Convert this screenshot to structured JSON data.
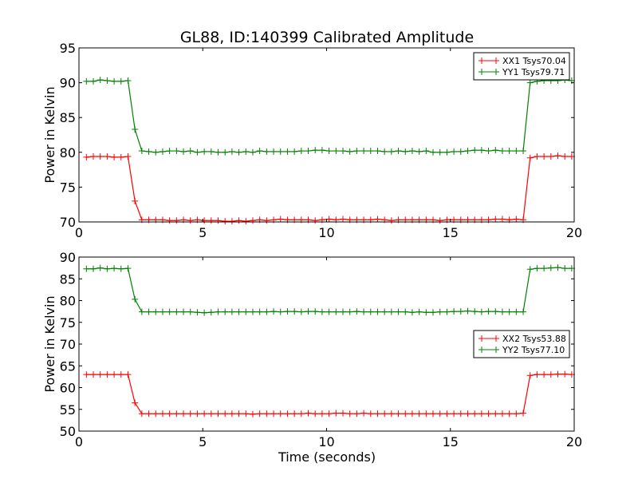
{
  "chart_data": [
    {
      "type": "line",
      "title": "GL88, ID:140399 Calibrated Amplitude",
      "xlabel": "",
      "ylabel": "Power in Kelvin",
      "xlim": [
        0,
        20
      ],
      "ylim": [
        70,
        95
      ],
      "xticks": [
        0,
        5,
        10,
        15,
        20
      ],
      "yticks": [
        70,
        75,
        80,
        85,
        90,
        95
      ],
      "legend_placement": "upper-right",
      "x_start": 0.3,
      "x_step": 0.28,
      "series": [
        {
          "name": "XX1 Tsys70.04",
          "color": "#ff0000",
          "values": [
            79.3,
            79.4,
            79.4,
            79.4,
            79.3,
            79.3,
            79.4,
            73.0,
            70.3,
            70.3,
            70.3,
            70.3,
            70.2,
            70.2,
            70.3,
            70.2,
            70.3,
            70.2,
            70.2,
            70.2,
            70.1,
            70.1,
            70.2,
            70.1,
            70.2,
            70.3,
            70.2,
            70.3,
            70.4,
            70.3,
            70.3,
            70.3,
            70.3,
            70.2,
            70.3,
            70.4,
            70.3,
            70.4,
            70.3,
            70.3,
            70.3,
            70.3,
            70.4,
            70.3,
            70.2,
            70.3,
            70.3,
            70.3,
            70.3,
            70.3,
            70.3,
            70.2,
            70.3,
            70.3,
            70.3,
            70.3,
            70.3,
            70.3,
            70.3,
            70.4,
            70.4,
            70.3,
            70.4,
            70.3,
            79.2,
            79.4,
            79.4,
            79.4,
            79.5,
            79.4,
            79.4
          ]
        },
        {
          "name": "YY1 Tsys79.71",
          "color": "#008000",
          "values": [
            90.2,
            90.2,
            90.4,
            90.3,
            90.2,
            90.2,
            90.3,
            83.3,
            80.2,
            80.1,
            80.0,
            80.1,
            80.2,
            80.2,
            80.1,
            80.2,
            80.0,
            80.1,
            80.1,
            80.0,
            80.0,
            80.1,
            80.0,
            80.1,
            80.0,
            80.2,
            80.1,
            80.1,
            80.1,
            80.1,
            80.1,
            80.2,
            80.2,
            80.3,
            80.3,
            80.2,
            80.2,
            80.2,
            80.1,
            80.2,
            80.2,
            80.2,
            80.2,
            80.1,
            80.1,
            80.2,
            80.1,
            80.2,
            80.1,
            80.2,
            80.0,
            80.0,
            80.0,
            80.1,
            80.1,
            80.2,
            80.3,
            80.3,
            80.2,
            80.3,
            80.2,
            80.2,
            80.2,
            80.2,
            90.0,
            90.2,
            90.3,
            90.3,
            90.3,
            90.4,
            90.3
          ]
        }
      ]
    },
    {
      "type": "line",
      "title": "",
      "xlabel": "Time (seconds)",
      "ylabel": "Power in Kelvin",
      "xlim": [
        0,
        20
      ],
      "ylim": [
        50,
        90
      ],
      "xticks": [
        0,
        5,
        10,
        15,
        20
      ],
      "yticks": [
        50,
        55,
        60,
        65,
        70,
        75,
        80,
        85,
        90
      ],
      "legend_placement": "center-right",
      "x_start": 0.3,
      "x_step": 0.28,
      "series": [
        {
          "name": "XX2 Tsys53.88",
          "color": "#ff0000",
          "values": [
            63.0,
            63.0,
            63.0,
            63.0,
            63.0,
            63.0,
            63.0,
            56.5,
            54.0,
            54.0,
            54.0,
            54.0,
            54.0,
            54.0,
            54.0,
            54.0,
            54.0,
            54.0,
            54.0,
            54.0,
            54.0,
            54.0,
            54.0,
            54.0,
            53.9,
            54.0,
            54.0,
            54.0,
            54.0,
            54.0,
            54.0,
            54.0,
            54.1,
            54.0,
            54.0,
            54.0,
            54.1,
            54.1,
            54.0,
            54.0,
            54.1,
            54.0,
            54.0,
            54.0,
            54.0,
            54.0,
            54.0,
            54.0,
            54.0,
            54.0,
            54.0,
            54.0,
            54.0,
            54.0,
            54.0,
            54.0,
            54.0,
            54.0,
            54.0,
            54.0,
            54.0,
            54.0,
            54.0,
            54.1,
            62.8,
            63.0,
            63.0,
            63.0,
            63.1,
            63.1,
            63.0
          ]
        },
        {
          "name": "YY2 Tsys77.10",
          "color": "#008000",
          "values": [
            87.3,
            87.3,
            87.5,
            87.3,
            87.4,
            87.3,
            87.4,
            80.3,
            77.4,
            77.4,
            77.4,
            77.4,
            77.4,
            77.4,
            77.4,
            77.4,
            77.3,
            77.2,
            77.3,
            77.4,
            77.4,
            77.4,
            77.4,
            77.4,
            77.4,
            77.4,
            77.4,
            77.5,
            77.4,
            77.5,
            77.5,
            77.4,
            77.5,
            77.5,
            77.4,
            77.4,
            77.4,
            77.4,
            77.4,
            77.5,
            77.4,
            77.4,
            77.4,
            77.4,
            77.4,
            77.4,
            77.4,
            77.3,
            77.4,
            77.3,
            77.3,
            77.4,
            77.4,
            77.5,
            77.5,
            77.6,
            77.5,
            77.4,
            77.5,
            77.5,
            77.4,
            77.4,
            77.4,
            77.4,
            87.2,
            87.4,
            87.4,
            87.5,
            87.6,
            87.4,
            87.4
          ]
        }
      ]
    }
  ]
}
